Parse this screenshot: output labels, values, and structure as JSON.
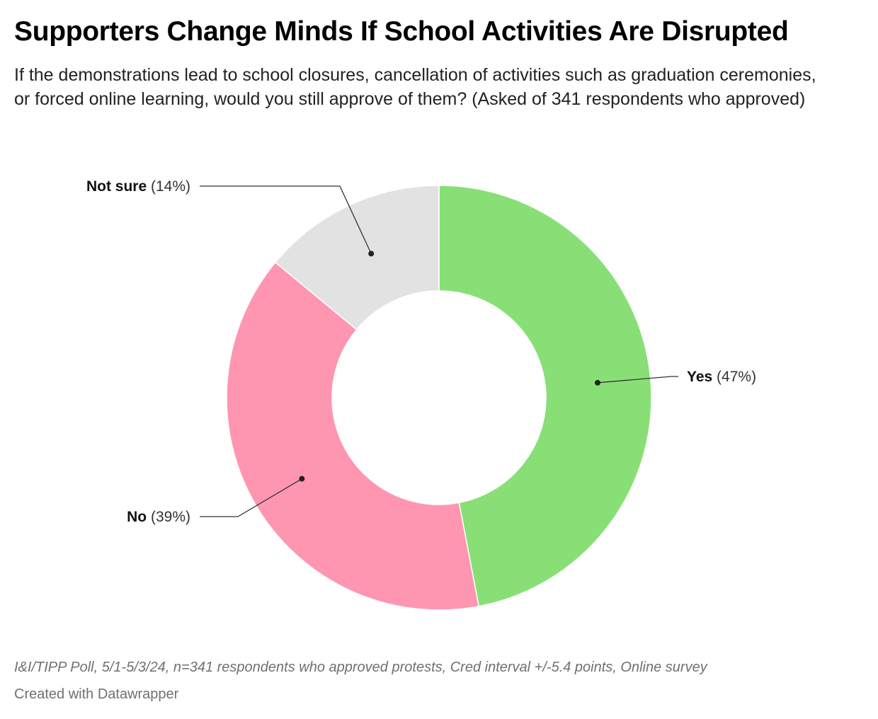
{
  "title": "Supporters Change Minds If School Activities Are Disrupted",
  "subtitle": "If the demonstrations lead to school closures, cancellation of activities such as graduation ceremonies, or forced online learning, would you still approve of them? (Asked of 341 respondents who approved)",
  "footer": {
    "source": "I&I/TIPP Poll, 5/1-5/3/24, n=341 respondents who approved protests, Cred interval +/-5.4 points, Online survey",
    "credit": "Created with Datawrapper"
  },
  "chart_data": {
    "type": "pie",
    "style": "donut",
    "title": "Supporters Change Minds If School Activities Are Disrupted",
    "categories": [
      "Yes",
      "No",
      "Not sure"
    ],
    "values": [
      47,
      39,
      14
    ],
    "value_labels": [
      "(47%)",
      "(39%)",
      "(14%)"
    ],
    "colors": [
      "#88df76",
      "#ff96b1",
      "#e2e2e2"
    ],
    "start": "12 o'clock, clockwise",
    "unit": "%"
  }
}
